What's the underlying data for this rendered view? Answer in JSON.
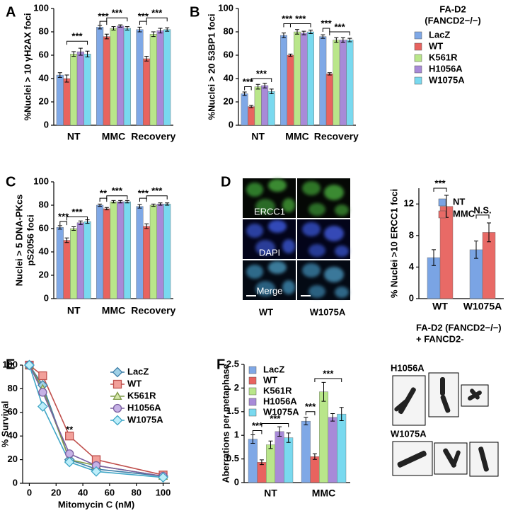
{
  "chart_data": [
    {
      "panel": "A",
      "type": "bar",
      "y_label": [
        "%Nuclei > 10 γH2AX foci"
      ],
      "categories": [
        "NT",
        "MMC",
        "Recovery"
      ],
      "ylim": [
        0,
        100
      ],
      "yticks": [
        0,
        20,
        40,
        60,
        80,
        100
      ],
      "series": [
        {
          "color": "#7fa8e6",
          "values": [
            43,
            84,
            82
          ],
          "errors": [
            2,
            1.5,
            2
          ]
        },
        {
          "color": "#e8635f",
          "values": [
            40,
            76,
            57
          ],
          "errors": [
            3,
            2,
            2
          ]
        },
        {
          "color": "#b9e68a",
          "values": [
            61,
            83,
            78
          ],
          "errors": [
            2,
            1.5,
            2
          ]
        },
        {
          "color": "#a88ad8",
          "values": [
            63,
            85,
            81
          ],
          "errors": [
            3,
            1,
            2
          ]
        },
        {
          "color": "#79d9ef",
          "values": [
            61,
            83,
            82
          ],
          "errors": [
            2.5,
            1.5,
            1.5
          ]
        }
      ],
      "annotations": [
        "***",
        "***",
        "***",
        "***",
        "***"
      ]
    },
    {
      "panel": "B",
      "type": "bar",
      "y_label": [
        "%Nuclei > 20 53BP1 foci"
      ],
      "categories": [
        "NT",
        "MMC",
        "Recovery"
      ],
      "ylim": [
        0,
        100
      ],
      "yticks": [
        0,
        20,
        40,
        60,
        80,
        100
      ],
      "legend_title": [
        "FA-D2",
        "(FANCD2−/−)"
      ],
      "series": [
        {
          "name": "LacZ",
          "color": "#7fa8e6",
          "values": [
            27,
            77,
            76
          ],
          "errors": [
            1.5,
            2,
            1.5
          ]
        },
        {
          "name": "WT",
          "color": "#e8635f",
          "values": [
            16,
            60,
            44
          ],
          "errors": [
            1,
            1,
            1
          ]
        },
        {
          "name": "K561R",
          "color": "#b9e68a",
          "values": [
            33,
            80,
            73
          ],
          "errors": [
            2,
            2,
            2
          ]
        },
        {
          "name": "H1056A",
          "color": "#a88ad8",
          "values": [
            34,
            79,
            73
          ],
          "errors": [
            2,
            1.5,
            2
          ]
        },
        {
          "name": "W1075A",
          "color": "#79d9ef",
          "values": [
            29,
            80,
            73
          ],
          "errors": [
            2,
            1.5,
            1.5
          ]
        }
      ],
      "annotations": [
        "***",
        "***",
        "***",
        "***",
        "***",
        "***"
      ]
    },
    {
      "panel": "C",
      "type": "bar",
      "y_label": [
        "Nuclei > 5 DNA-PKcs",
        "pS2056 foci"
      ],
      "categories": [
        "NT",
        "MMC",
        "Recovery"
      ],
      "ylim": [
        0,
        100
      ],
      "yticks": [
        0,
        20,
        40,
        60,
        80,
        100
      ],
      "series": [
        {
          "color": "#7fa8e6",
          "values": [
            61,
            80,
            79
          ],
          "errors": [
            1.5,
            1,
            1.5
          ]
        },
        {
          "color": "#e8635f",
          "values": [
            50,
            77,
            62
          ],
          "errors": [
            2,
            1,
            2
          ]
        },
        {
          "color": "#b9e68a",
          "values": [
            60,
            83,
            80
          ],
          "errors": [
            1.5,
            1,
            1
          ]
        },
        {
          "color": "#a88ad8",
          "values": [
            65,
            83,
            81
          ],
          "errors": [
            1.5,
            1,
            1
          ]
        },
        {
          "color": "#79d9ef",
          "values": [
            66,
            83,
            81
          ],
          "errors": [
            1.5,
            1,
            1
          ]
        }
      ],
      "annotations": [
        "***",
        "***",
        "**",
        "***",
        "***",
        "***"
      ]
    },
    {
      "panel": "D",
      "type": "bar",
      "y_label": [
        "% Nuclei >10 ERCC1 foci"
      ],
      "categories": [
        "WT",
        "W1075A"
      ],
      "ylim": [
        0,
        14
      ],
      "yticks": [
        0,
        4,
        8,
        12
      ],
      "series": [
        {
          "name": "NT",
          "color": "#7aa4e4",
          "values": [
            5.2,
            6.2
          ],
          "errors": [
            1,
            1.1
          ]
        },
        {
          "name": "MMC",
          "color": "#e86a66",
          "values": [
            11.7,
            8.4
          ],
          "errors": [
            1.4,
            1.2
          ]
        }
      ],
      "annotations": [
        "***",
        "N.S."
      ],
      "caption": [
        "FA-D2 (FANCD2−/−)",
        "+ FANCD2-"
      ]
    },
    {
      "panel": "E",
      "type": "line",
      "y_label": [
        "% Survival"
      ],
      "x_label": "Mitomycin C (nM)",
      "x": [
        0,
        10,
        30,
        50,
        100
      ],
      "xlim": [
        -5,
        105
      ],
      "xticks": [
        0,
        20,
        40,
        60,
        80,
        100
      ],
      "ylim": [
        0,
        100
      ],
      "yticks": [
        0,
        20,
        40,
        60,
        80,
        100
      ],
      "series": [
        {
          "name": "LacZ",
          "color": "#3f7fa8",
          "fill": "#9fd0e6",
          "marker": "diamond",
          "values": [
            100,
            83,
            20,
            12,
            6
          ]
        },
        {
          "name": "WT",
          "color": "#c0504d",
          "fill": "#f2a09a",
          "marker": "square",
          "values": [
            100,
            91,
            40,
            20,
            7
          ]
        },
        {
          "name": "K561R",
          "color": "#7f9a48",
          "fill": "#d4e6a8",
          "marker": "triangle",
          "values": [
            100,
            80,
            20,
            15,
            6
          ]
        },
        {
          "name": "H1056A",
          "color": "#7a5fa0",
          "fill": "#c6b2e6",
          "marker": "circle",
          "values": [
            100,
            77,
            25,
            15,
            6
          ]
        },
        {
          "name": "W1075A",
          "color": "#3fa6c6",
          "fill": "#bdeefa",
          "marker": "diamond",
          "values": [
            100,
            65,
            18,
            10,
            5
          ]
        }
      ],
      "annotations": [
        "**"
      ]
    },
    {
      "panel": "F",
      "type": "bar",
      "y_label": [
        "Aberrations per metaphase"
      ],
      "categories": [
        "NT",
        "MMC"
      ],
      "ylim": [
        0,
        2.5
      ],
      "yticks": [
        0,
        0.5,
        1,
        1.5,
        2,
        2.5
      ],
      "series": [
        {
          "name": "LacZ",
          "color": "#7fa8e6",
          "values": [
            0.92,
            1.3
          ],
          "errors": [
            0.09,
            0.08
          ]
        },
        {
          "name": "WT",
          "color": "#e8635f",
          "values": [
            0.43,
            0.55
          ],
          "errors": [
            0.05,
            0.06
          ]
        },
        {
          "name": "K561R",
          "color": "#b9e68a",
          "values": [
            0.8,
            1.92
          ],
          "errors": [
            0.08,
            0.2
          ]
        },
        {
          "name": "H1056A",
          "color": "#a88ad8",
          "values": [
            1.08,
            1.38
          ],
          "errors": [
            0.1,
            0.08
          ]
        },
        {
          "name": "W1075A",
          "color": "#79d9ef",
          "values": [
            0.95,
            1.45
          ],
          "errors": [
            0.1,
            0.14
          ]
        }
      ],
      "annotations": [
        "***",
        "***",
        "***",
        "***"
      ]
    }
  ],
  "micrograph": {
    "channels": [
      "ERCC1",
      "DAPI",
      "Merge"
    ],
    "columns": [
      "WT",
      "W1075A"
    ]
  },
  "chromosomes": {
    "labels": [
      "H1056A",
      "W1075A"
    ]
  }
}
